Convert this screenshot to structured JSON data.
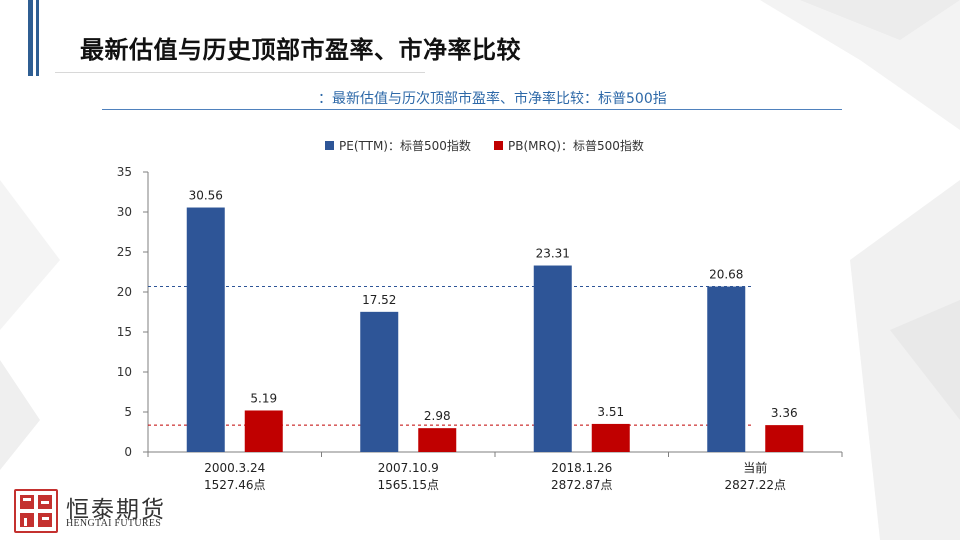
{
  "slide": {
    "title": "最新估值与历史顶部市盈率、市净率比较",
    "logo_cn": "恒泰期货",
    "logo_en": "HENGTAI FUTURES"
  },
  "colors": {
    "pe": "#2e5597",
    "pb": "#c00000",
    "accent": "#2f5e92",
    "subtitle": "#2e69a8"
  },
  "chart_data": {
    "type": "bar",
    "title": "：最新估值与历次顶部市盈率、市净率比较：标普500指",
    "categories": [
      "2000.3.24",
      "2007.10.9",
      "2018.1.26",
      "当前"
    ],
    "category_sublabels": [
      "1527.46点",
      "1565.15点",
      "2872.87点",
      "2827.22点"
    ],
    "series": [
      {
        "name": "PE(TTM)：标普500指数",
        "values": [
          30.56,
          17.52,
          23.31,
          20.68
        ]
      },
      {
        "name": "PB(MRQ)：标普500指数",
        "values": [
          5.19,
          2.98,
          3.51,
          3.36
        ]
      }
    ],
    "data_labels": [
      [
        "30.56",
        "17.52",
        "23.31",
        "20.68"
      ],
      [
        "5.19",
        "2.98",
        "3.51",
        "3.36"
      ]
    ],
    "reference_lines": [
      {
        "series": "PE(TTM)：标普500指数",
        "value": 20.68,
        "style": "dashed"
      },
      {
        "series": "PB(MRQ)：标普500指数",
        "value": 3.36,
        "style": "dashed"
      }
    ],
    "yticks": [
      "0",
      "5",
      "10",
      "15",
      "20",
      "25",
      "30",
      "35"
    ],
    "ylim": [
      0,
      35
    ],
    "xlabel": "",
    "ylabel": "",
    "legend_position": "top-center",
    "grid": false
  }
}
